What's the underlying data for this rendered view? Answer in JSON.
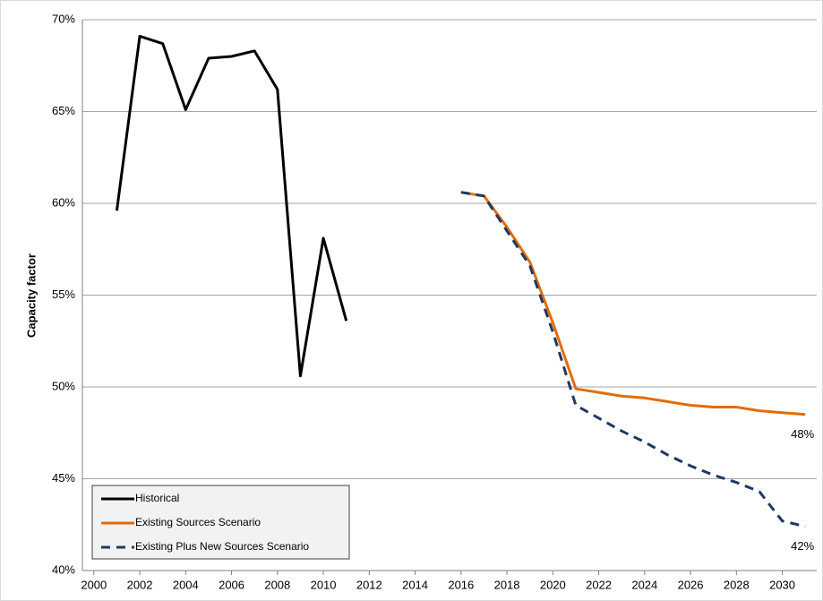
{
  "chart_data": {
    "type": "line",
    "y_label": "Capacity factor",
    "xlim": [
      1999.5,
      2031.5
    ],
    "xticks": [
      2000,
      2002,
      2004,
      2006,
      2008,
      2010,
      2012,
      2014,
      2016,
      2018,
      2020,
      2022,
      2024,
      2026,
      2028,
      2030
    ],
    "ylim": [
      40,
      70
    ],
    "yticks": [
      {
        "value": 40,
        "label": "40%"
      },
      {
        "value": 45,
        "label": "45%"
      },
      {
        "value": 50,
        "label": "50%"
      },
      {
        "value": 55,
        "label": "55%"
      },
      {
        "value": 60,
        "label": "60%"
      },
      {
        "value": 65,
        "label": "65%"
      },
      {
        "value": 70,
        "label": "70%"
      }
    ],
    "grid": true,
    "legend": "lower left",
    "series": [
      {
        "name": "Historical",
        "color": "#000000",
        "dash": false,
        "x": [
          2001,
          2002,
          2003,
          2004,
          2005,
          2006,
          2007,
          2008,
          2009,
          2010,
          2011
        ],
        "values": [
          59.6,
          69.1,
          68.7,
          65.1,
          67.9,
          68.0,
          68.3,
          66.2,
          50.6,
          58.1,
          53.6
        ]
      },
      {
        "name": "Existing Sources Scenario",
        "color": "#e36c09",
        "dash": false,
        "x": [
          2016,
          2017,
          2018,
          2019,
          2020,
          2021,
          2022,
          2023,
          2024,
          2025,
          2026,
          2027,
          2028,
          2029,
          2030,
          2031
        ],
        "values": [
          60.6,
          60.4,
          58.7,
          56.8,
          53.5,
          49.9,
          49.7,
          49.5,
          49.4,
          49.2,
          49.0,
          48.9,
          48.9,
          48.7,
          48.6,
          48.5
        ]
      },
      {
        "name": "Existing Plus New Sources Scenario",
        "color": "#1f3864",
        "dash": true,
        "x": [
          2016,
          2017,
          2018,
          2019,
          2020,
          2021,
          2022,
          2023,
          2024,
          2025,
          2026,
          2027,
          2028,
          2029,
          2030,
          2031
        ],
        "values": [
          60.6,
          60.4,
          58.5,
          56.6,
          53.0,
          49.0,
          48.3,
          47.6,
          47.0,
          46.3,
          45.7,
          45.2,
          44.8,
          44.3,
          42.7,
          42.4
        ]
      }
    ],
    "annotations": [
      {
        "text": "48%",
        "series": 1
      },
      {
        "text": "42%",
        "series": 2
      }
    ]
  }
}
